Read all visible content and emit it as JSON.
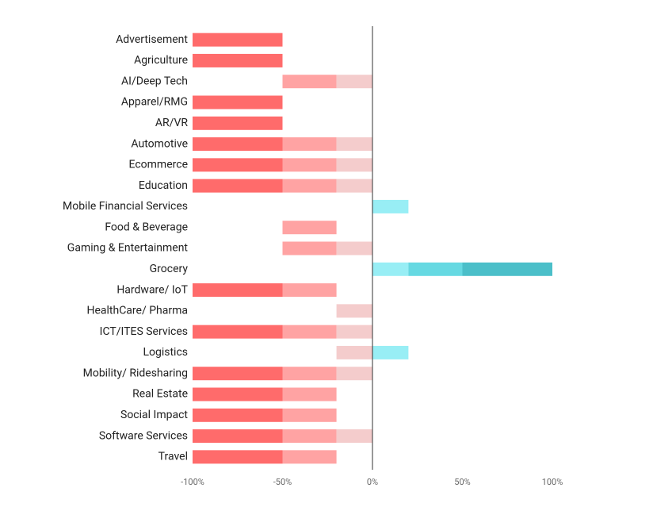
{
  "chart_data": {
    "type": "range_bar",
    "categories": [
      "Advertisement",
      "Agriculture",
      "AI/Deep Tech",
      "Apparel/RMG",
      "AR/VR",
      "Automotive",
      "Ecommerce",
      "Education",
      "Mobile Financial Services",
      "Food & Beverage",
      "Gaming & Entertainment",
      "Grocery",
      "Hardware/ IoT",
      "HealthCare/ Pharma",
      "ICT/ITES Services",
      "Logistics",
      "Mobility/ Ridesharing",
      "Real Estate",
      "Social Impact",
      "Software Services",
      "Travel"
    ],
    "series": [
      {
        "color": "#ff6b6b",
        "values": [
          [
            -100,
            -50
          ],
          [
            -100,
            -50
          ],
          null,
          [
            -100,
            -50
          ],
          [
            -100,
            -50
          ],
          [
            -100,
            -50
          ],
          [
            -100,
            -50
          ],
          [
            -100,
            -50
          ],
          null,
          null,
          null,
          null,
          [
            -100,
            -50
          ],
          null,
          [
            -100,
            -50
          ],
          null,
          [
            -100,
            -50
          ],
          [
            -100,
            -50
          ],
          [
            -100,
            -50
          ],
          [
            -100,
            -50
          ],
          [
            -100,
            -50
          ]
        ]
      },
      {
        "color": "#ffa3a3",
        "values": [
          null,
          null,
          [
            -50,
            -20
          ],
          null,
          null,
          [
            -50,
            -20
          ],
          [
            -50,
            -20
          ],
          [
            -50,
            -20
          ],
          null,
          [
            -50,
            -20
          ],
          [
            -50,
            -20
          ],
          null,
          [
            -50,
            -20
          ],
          null,
          [
            -50,
            -20
          ],
          null,
          [
            -50,
            -20
          ],
          [
            -50,
            -20
          ],
          [
            -50,
            -20
          ],
          [
            -50,
            -20
          ],
          [
            -50,
            -20
          ]
        ]
      },
      {
        "color": "#f4cccc",
        "values": [
          null,
          null,
          [
            -20,
            0
          ],
          null,
          null,
          [
            -20,
            0
          ],
          [
            -20,
            0
          ],
          [
            -20,
            0
          ],
          null,
          null,
          [
            -20,
            0
          ],
          null,
          null,
          [
            -20,
            0
          ],
          [
            -20,
            0
          ],
          [
            -20,
            0
          ],
          [
            -20,
            0
          ],
          null,
          null,
          [
            -20,
            0
          ],
          null
        ]
      },
      {
        "color": "#98eef5",
        "values": [
          null,
          null,
          null,
          null,
          null,
          null,
          null,
          null,
          [
            0,
            20
          ],
          null,
          null,
          [
            0,
            20
          ],
          null,
          null,
          null,
          [
            0,
            20
          ],
          null,
          null,
          null,
          null,
          null
        ]
      },
      {
        "color": "#66d9e2",
        "values": [
          null,
          null,
          null,
          null,
          null,
          null,
          null,
          null,
          null,
          null,
          null,
          [
            20,
            50
          ],
          null,
          null,
          null,
          null,
          null,
          null,
          null,
          null,
          null
        ]
      },
      {
        "color": "#4bbfc9",
        "values": [
          null,
          null,
          null,
          null,
          null,
          null,
          null,
          null,
          null,
          null,
          null,
          [
            50,
            100
          ],
          null,
          null,
          null,
          null,
          null,
          null,
          null,
          null,
          null
        ]
      }
    ],
    "xlim": [
      -100,
      100
    ],
    "xticks": [
      {
        "value": -100,
        "label": "-100%"
      },
      {
        "value": -50,
        "label": "-50%"
      },
      {
        "value": 0,
        "label": "0%"
      },
      {
        "value": 50,
        "label": "50%"
      },
      {
        "value": 100,
        "label": "100%"
      }
    ]
  }
}
